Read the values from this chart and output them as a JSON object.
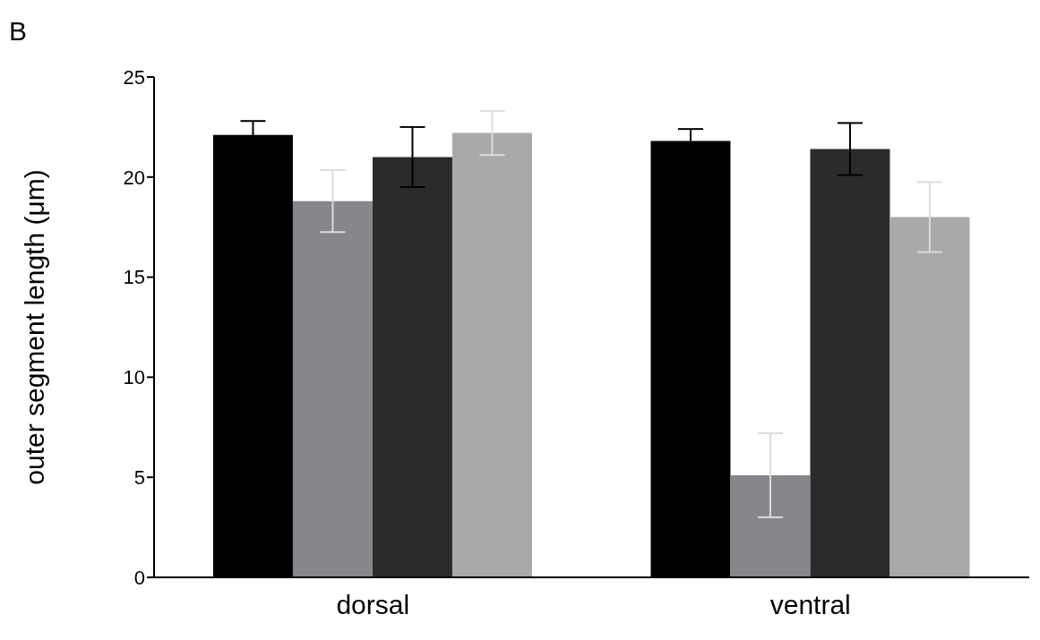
{
  "chart_data": {
    "type": "bar",
    "ylabel": "outer segment length (μm)",
    "annotations": [
      "B"
    ],
    "categories": [
      "dorsal",
      "ventral"
    ],
    "series": [
      {
        "color": "#000000",
        "values": [
          22.1,
          21.8
        ],
        "errors": [
          0.7,
          0.6
        ]
      },
      {
        "color": "#87868b",
        "values": [
          18.8,
          5.1
        ],
        "errors": [
          1.55,
          2.1
        ]
      },
      {
        "color": "#2b2b2b",
        "values": [
          21.0,
          21.4
        ],
        "errors": [
          1.5,
          1.3
        ]
      },
      {
        "color": "#a9a9ac",
        "values": [
          22.2,
          18.0
        ],
        "errors": [
          1.1,
          1.75
        ]
      }
    ],
    "ylim": [
      0,
      25
    ],
    "yticks": [
      0,
      5,
      10,
      15,
      20,
      25
    ],
    "grid": false,
    "legend": false
  }
}
